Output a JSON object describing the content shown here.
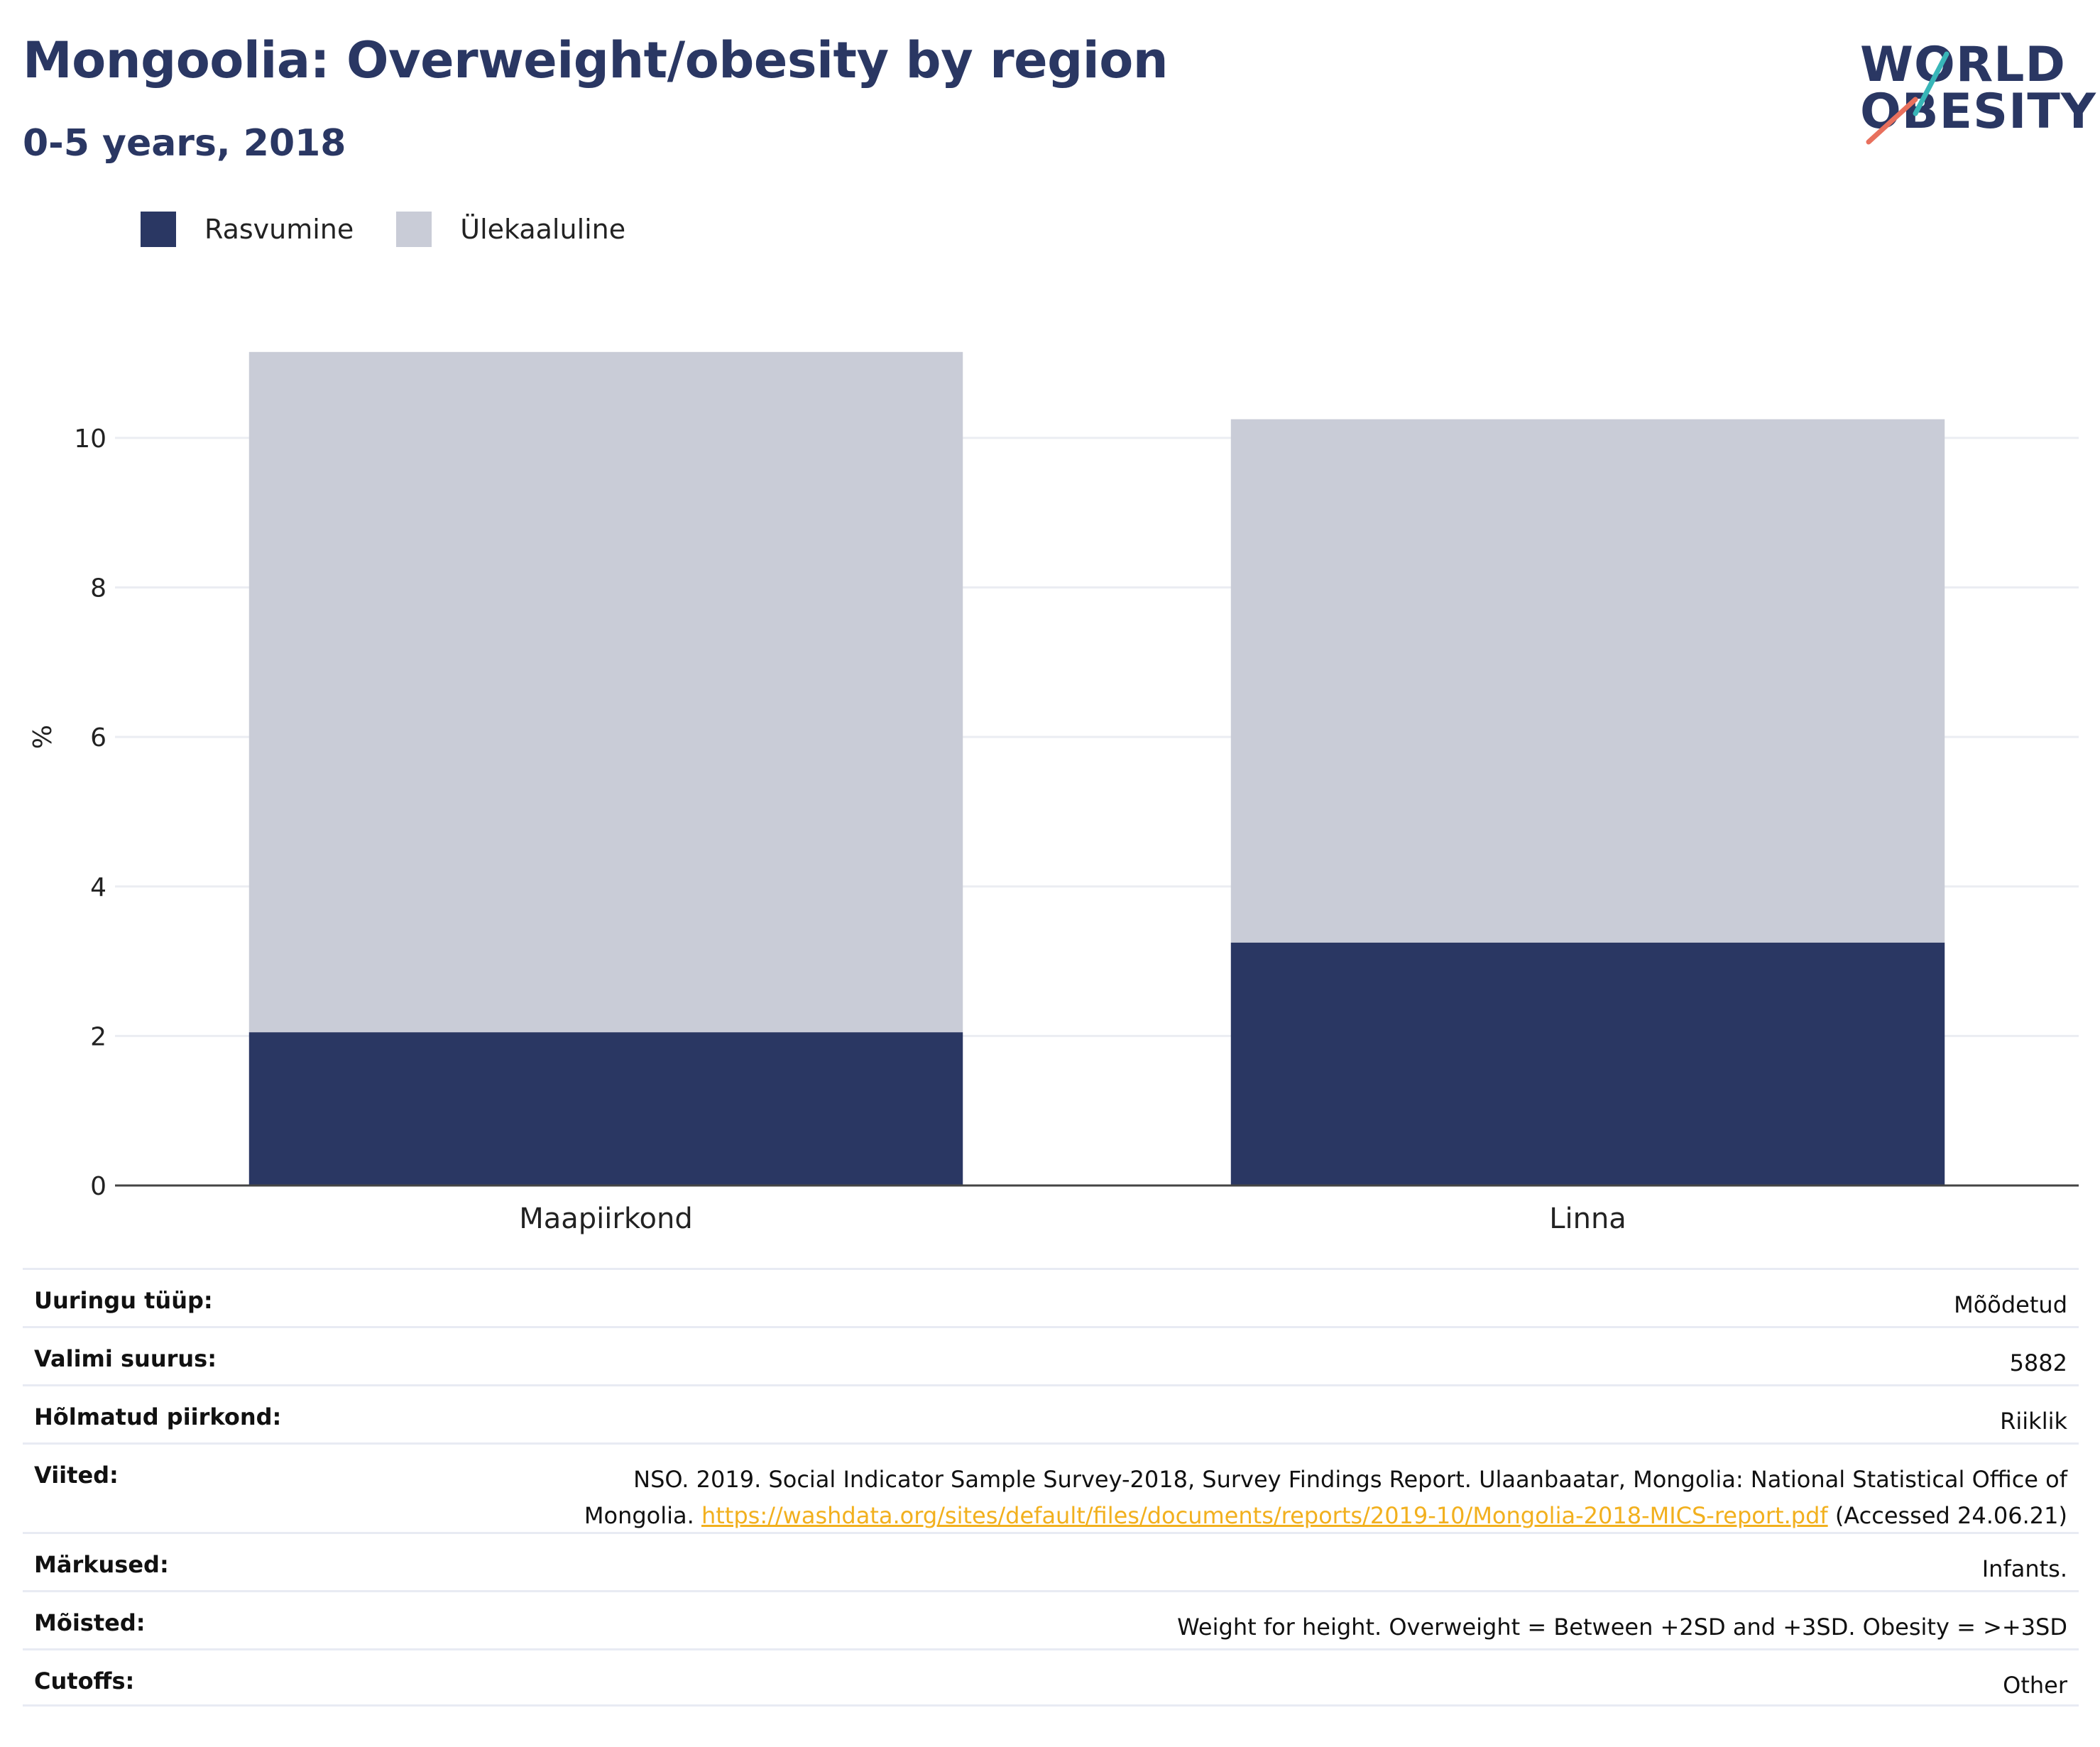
{
  "header": {
    "title": "Mongoolia: Overweight/obesity by region",
    "subtitle": "0-5 years, 2018"
  },
  "logo": {
    "line1": "WORLD",
    "line2": "OBESITY",
    "colors": {
      "text": "#2a3763",
      "slash_teal": "#38b6b8",
      "slash_coral": "#e8705d"
    }
  },
  "legend": [
    {
      "label": "Rasvumine",
      "color": "#2a3763"
    },
    {
      "label": "Ülekaaluline",
      "color": "#c9ccd7"
    }
  ],
  "chart_data": {
    "type": "bar",
    "stacked": true,
    "categories": [
      "Maapiirkond",
      "Linna"
    ],
    "series": [
      {
        "name": "Rasvumine",
        "values": [
          2.05,
          3.25
        ],
        "color": "#2a3763"
      },
      {
        "name": "Ülekaaluline",
        "values": [
          9.1,
          7.0
        ],
        "color": "#c9ccd7"
      }
    ],
    "ylabel": "%",
    "ylim": [
      0,
      11.3
    ],
    "yticks": [
      0,
      2,
      4,
      6,
      8,
      10
    ],
    "grid": true,
    "legend_position": "top-left"
  },
  "info_table": [
    {
      "label": "Uuringu tüüp:",
      "value": "Mõõdetud"
    },
    {
      "label": "Valimi suurus:",
      "value": "5882"
    },
    {
      "label": "Hõlmatud piirkond:",
      "value": "Riiklik"
    },
    {
      "label": "Viited:",
      "value_before": "NSO. 2019. Social Indicator Sample Survey-2018, Survey Findings Report. Ulaanbaatar, Mongolia: National Statistical Office of Mongolia. ",
      "link": "https://washdata.org/sites/default/files/documents/reports/2019-10/Mongolia-2018-MICS-report.pdf",
      "value_after": " (Accessed 24.06.21)"
    },
    {
      "label": "Märkused:",
      "value": "Infants."
    },
    {
      "label": "Mõisted:",
      "value": "Weight for height. Overweight = Between +2SD and +3SD. Obesity = >+3SD"
    },
    {
      "label": "Cutoffs:",
      "value": "Other"
    }
  ]
}
